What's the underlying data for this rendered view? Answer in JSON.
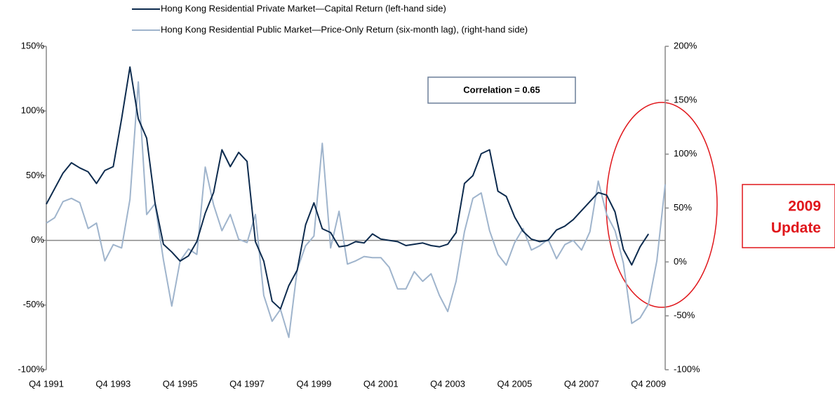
{
  "chart_data": {
    "type": "line",
    "categories": [
      "Q4 1991",
      null,
      null,
      null,
      null,
      null,
      null,
      null,
      "Q4 1993",
      null,
      null,
      null,
      null,
      null,
      null,
      null,
      "Q4 1995",
      null,
      null,
      null,
      null,
      null,
      null,
      null,
      "Q4 1997",
      null,
      null,
      null,
      null,
      null,
      null,
      null,
      "Q4 1999",
      null,
      null,
      null,
      null,
      null,
      null,
      null,
      "Q4 2001",
      null,
      null,
      null,
      null,
      null,
      null,
      null,
      "Q4 2003",
      null,
      null,
      null,
      null,
      null,
      null,
      null,
      "Q4 2005",
      null,
      null,
      null,
      null,
      null,
      null,
      null,
      "Q4 2007",
      null,
      null,
      null,
      null,
      null,
      null,
      null,
      "Q4 2009",
      null,
      null
    ],
    "series": [
      {
        "name": "Hong Kong Residential Private Market—Capital Return (left-hand side)",
        "color": "#0d2b4e",
        "axis": "y",
        "values": [
          28,
          40,
          52,
          60,
          56,
          53,
          44,
          54,
          57,
          94,
          134,
          94,
          79,
          29,
          -3,
          -9,
          -16,
          -12,
          -1,
          21,
          37,
          70,
          57,
          68,
          61,
          -1,
          -16,
          -47,
          -53,
          -35,
          -23,
          12,
          29,
          9,
          6,
          -5,
          -4,
          -1,
          -2,
          5,
          1,
          0,
          -1,
          -4,
          -3,
          -2,
          -4,
          -5,
          -3,
          6,
          44,
          50,
          67,
          70,
          38,
          34,
          18,
          7,
          1,
          -1,
          0,
          8,
          11,
          16,
          23,
          30,
          37,
          35,
          22,
          -7,
          -19,
          -5,
          5,
          null,
          null
        ]
      },
      {
        "name": "Hong Kong Residential Public Market—Price-Only Return (six-month lag), (right-hand side)",
        "color": "#9fb4cc",
        "axis": "y2",
        "values": [
          36,
          41,
          56,
          59,
          55,
          31,
          36,
          1,
          16,
          13,
          58,
          167,
          44,
          54,
          2,
          -41,
          1,
          12,
          7,
          88,
          53,
          29,
          44,
          21,
          18,
          44,
          -31,
          -55,
          -44,
          -70,
          -7,
          15,
          24,
          110,
          13,
          47,
          -2,
          1,
          5,
          4,
          4,
          -5,
          -25,
          -25,
          -9,
          -18,
          -11,
          -31,
          -46,
          -18,
          28,
          59,
          64,
          29,
          7,
          -3,
          18,
          31,
          11,
          15,
          21,
          3,
          16,
          20,
          11,
          28,
          75,
          44,
          29,
          -1,
          -57,
          -52,
          -39,
          1,
          72
        ]
      }
    ],
    "ylim": [
      -100,
      150
    ],
    "yticks": [
      {
        "value": -100,
        "label": "-100%"
      },
      {
        "value": -50,
        "label": "-50%"
      },
      {
        "value": 0,
        "label": "0%"
      },
      {
        "value": 50,
        "label": "50%"
      },
      {
        "value": 100,
        "label": "100%"
      },
      {
        "value": 150,
        "label": "150%"
      }
    ],
    "y2lim": [
      -100,
      200
    ],
    "y2ticks": [
      {
        "value": -100,
        "label": "-100%"
      },
      {
        "value": -50,
        "label": "-50%"
      },
      {
        "value": 0,
        "label": "0%"
      },
      {
        "value": 50,
        "label": "50%"
      },
      {
        "value": 100,
        "label": "100%"
      },
      {
        "value": 150,
        "label": "150%"
      },
      {
        "value": 200,
        "label": "200%"
      }
    ],
    "annotations": [
      "Correlation = 0.65"
    ],
    "callout": [
      "2009",
      "Update"
    ]
  }
}
